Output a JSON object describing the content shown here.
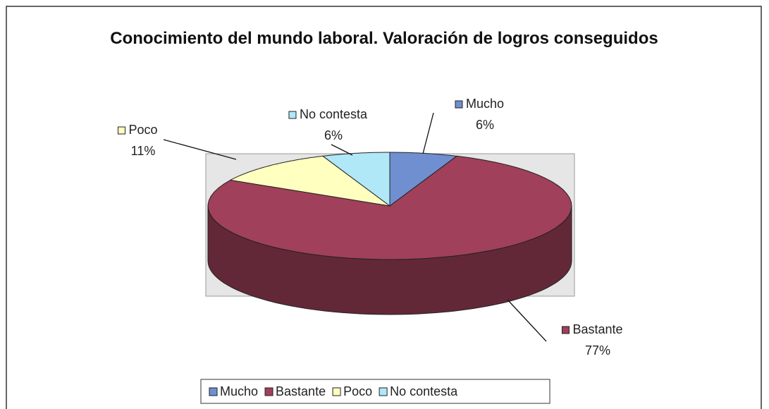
{
  "chart_data": {
    "type": "pie",
    "title": "Conocimiento del mundo laboral. Valoración de logros conseguidos",
    "categories": [
      "Mucho",
      "Bastante",
      "Poco",
      "No contesta"
    ],
    "values": [
      6,
      77,
      11,
      6
    ],
    "value_labels": [
      "6%",
      "77%",
      "11%",
      "6%"
    ],
    "colors": [
      "#6f8fd0",
      "#a0405a",
      "#ffffc0",
      "#b0e8f8"
    ],
    "legend": "bottom"
  }
}
